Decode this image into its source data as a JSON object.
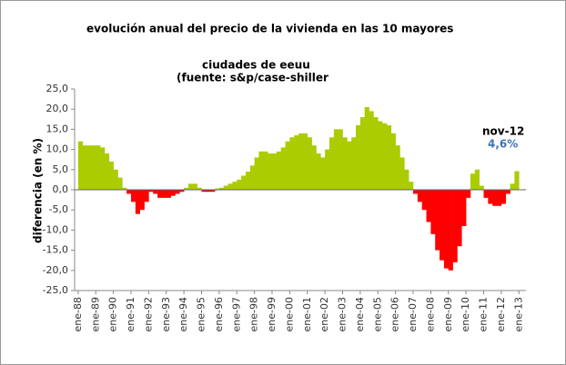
{
  "chart_data": {
    "type": "bar",
    "title": "evolución anual del precio de la vivienda en las 10 mayores",
    "subtitle": [
      "ciudades de eeuu",
      "(fuente:  s&p/case-shiller"
    ],
    "y_label": "diferencia (en %)",
    "annotations": [
      "nov-12",
      "4,6%"
    ],
    "positive_color": "#aacc00",
    "negative_color": "#ff0000",
    "x": [
      1988,
      1988.25,
      1988.5,
      1988.75,
      1989,
      1989.25,
      1989.5,
      1989.75,
      1990,
      1990.25,
      1990.5,
      1990.75,
      1991,
      1991.25,
      1991.5,
      1991.75,
      1992,
      1992.25,
      1992.5,
      1992.75,
      1993,
      1993.25,
      1993.5,
      1993.75,
      1994,
      1994.25,
      1994.5,
      1994.75,
      1995,
      1995.25,
      1995.5,
      1995.75,
      1996,
      1996.25,
      1996.5,
      1996.75,
      1997,
      1997.25,
      1997.5,
      1997.75,
      1998,
      1998.25,
      1998.5,
      1998.75,
      1999,
      1999.25,
      1999.5,
      1999.75,
      2000,
      2000.25,
      2000.5,
      2000.75,
      2001,
      2001.25,
      2001.5,
      2001.75,
      2002,
      2002.25,
      2002.5,
      2002.75,
      2003,
      2003.25,
      2003.5,
      2003.75,
      2004,
      2004.25,
      2004.5,
      2004.75,
      2005,
      2005.25,
      2005.5,
      2005.75,
      2006,
      2006.25,
      2006.5,
      2006.75,
      2007,
      2007.25,
      2007.5,
      2007.75,
      2008,
      2008.25,
      2008.5,
      2008.75,
      2009,
      2009.25,
      2009.5,
      2009.75,
      2010,
      2010.25,
      2010.5,
      2010.75,
      2011,
      2011.25,
      2011.5,
      2011.75,
      2012,
      2012.25,
      2012.5,
      2012.75
    ],
    "values": [
      12,
      11,
      11,
      11,
      11,
      10.5,
      9,
      7,
      5,
      3,
      0.5,
      -1,
      -3,
      -6,
      -5,
      -3,
      -0.5,
      -1,
      -2,
      -2,
      -2,
      -1.5,
      -1,
      -0.5,
      0.5,
      1.5,
      1.5,
      0.5,
      -0.5,
      -0.5,
      -0.5,
      0.3,
      0.5,
      1,
      1.5,
      2,
      2.5,
      3.5,
      4.5,
      6,
      8,
      9.5,
      9.5,
      9,
      9,
      9.5,
      10.5,
      12,
      13,
      13.5,
      14,
      14,
      13,
      11,
      9,
      8,
      10,
      13,
      15,
      15,
      13,
      12,
      13,
      16,
      18,
      20.5,
      19.5,
      18,
      17,
      16.5,
      16,
      14,
      11,
      8,
      5,
      2,
      -1,
      -3,
      -5,
      -8,
      -11,
      -15,
      -17.5,
      -19.5,
      -20,
      -18,
      -14,
      -9,
      -2,
      4,
      5,
      1,
      -2,
      -3.5,
      -4,
      -4,
      -3.5,
      -1,
      1.5,
      4.6
    ],
    "xlim": [
      1987.8,
      2013.4
    ],
    "xticks": [
      {
        "value": 1988,
        "label": "ene-88"
      },
      {
        "value": 1989,
        "label": "ene-89"
      },
      {
        "value": 1990,
        "label": "ene-90"
      },
      {
        "value": 1991,
        "label": "ene-91"
      },
      {
        "value": 1992,
        "label": "ene-92"
      },
      {
        "value": 1993,
        "label": "ene-93"
      },
      {
        "value": 1994,
        "label": "ene-94"
      },
      {
        "value": 1995,
        "label": "ene-95"
      },
      {
        "value": 1996,
        "label": "ene-96"
      },
      {
        "value": 1997,
        "label": "ene-97"
      },
      {
        "value": 1998,
        "label": "ene-98"
      },
      {
        "value": 1999,
        "label": "ene-99"
      },
      {
        "value": 2000,
        "label": "ene-00"
      },
      {
        "value": 2001,
        "label": "ene-01"
      },
      {
        "value": 2002,
        "label": "ene-02"
      },
      {
        "value": 2003,
        "label": "ene-03"
      },
      {
        "value": 2004,
        "label": "ene-04"
      },
      {
        "value": 2005,
        "label": "ene-05"
      },
      {
        "value": 2006,
        "label": "ene-06"
      },
      {
        "value": 2007,
        "label": "ene-07"
      },
      {
        "value": 2008,
        "label": "ene-08"
      },
      {
        "value": 2009,
        "label": "ene-09"
      },
      {
        "value": 2010,
        "label": "ene-10"
      },
      {
        "value": 2011,
        "label": "ene-11"
      },
      {
        "value": 2012,
        "label": "ene-12"
      },
      {
        "value": 2013,
        "label": "ene-13"
      }
    ],
    "ylim": [
      -25,
      25
    ],
    "yticks": [
      {
        "value": -25,
        "label": "-25,0"
      },
      {
        "value": -20,
        "label": "-20,0"
      },
      {
        "value": -15,
        "label": "-15,0"
      },
      {
        "value": -10,
        "label": "-10,0"
      },
      {
        "value": -5,
        "label": "-5,0"
      },
      {
        "value": 0,
        "label": "0,0"
      },
      {
        "value": 5,
        "label": "5,0"
      },
      {
        "value": 10,
        "label": "10,0"
      },
      {
        "value": 15,
        "label": "15,0"
      },
      {
        "value": 20,
        "label": "20,0"
      },
      {
        "value": 25,
        "label": "25,0"
      }
    ]
  }
}
